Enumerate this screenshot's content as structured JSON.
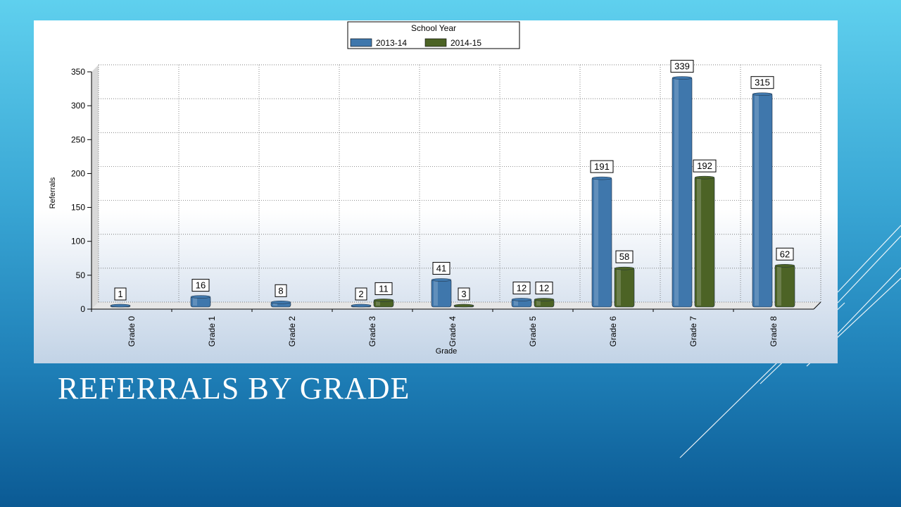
{
  "slide": {
    "title": "REFERRALS BY GRADE"
  },
  "chart_data": {
    "type": "bar",
    "title": "",
    "xlabel": "Grade",
    "ylabel": "Referrals",
    "categories": [
      "Grade 0",
      "Grade 1",
      "Grade 2",
      "Grade 3",
      "Grade 4",
      "Grade 5",
      "Grade 6",
      "Grade 7",
      "Grade 8"
    ],
    "series": [
      {
        "name": "2013-14",
        "color": "#3f77ac",
        "values": [
          1,
          16,
          8,
          2,
          41,
          12,
          191,
          339,
          315
        ]
      },
      {
        "name": "2014-15",
        "color": "#4c6325",
        "values": [
          null,
          null,
          null,
          11,
          3,
          12,
          58,
          192,
          62
        ]
      }
    ],
    "ylim": [
      0,
      350
    ],
    "yticks": [
      0,
      50,
      100,
      150,
      200,
      250,
      300,
      350
    ],
    "grid": true,
    "legend": {
      "title": "School Year",
      "position": "top-center"
    }
  }
}
